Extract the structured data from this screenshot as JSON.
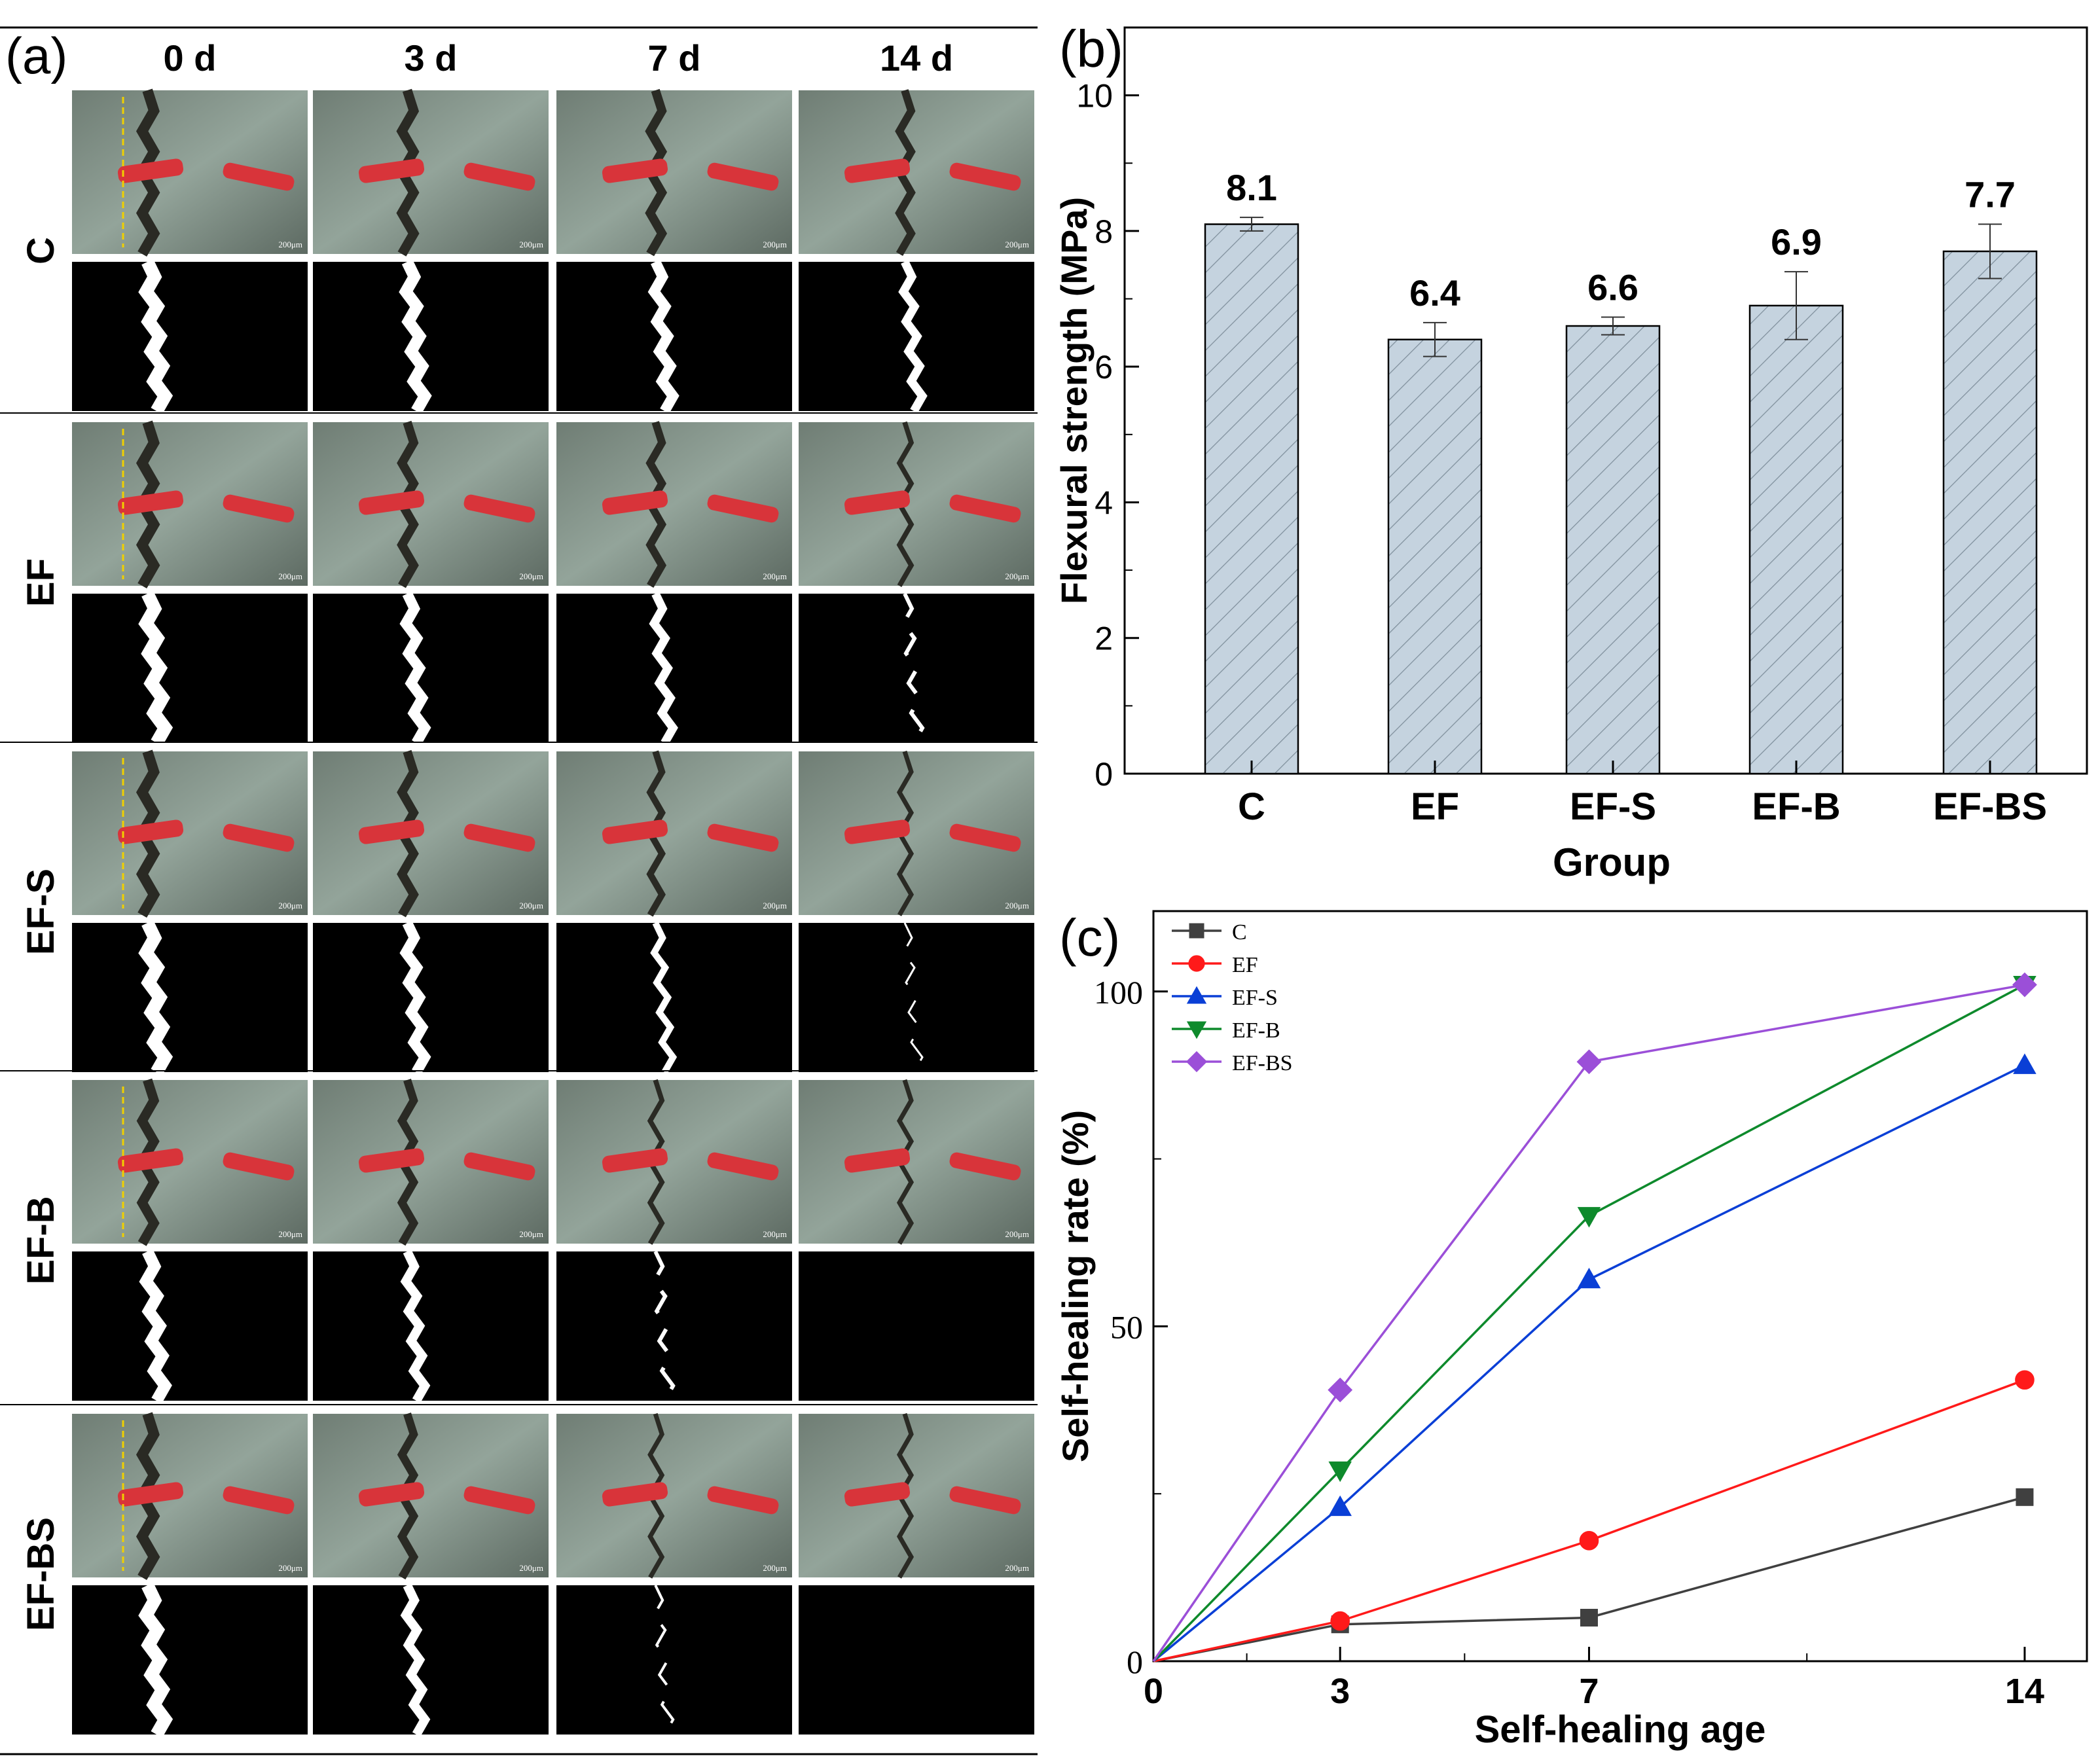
{
  "panel_a": {
    "label": "(a)",
    "columns": [
      "0 d",
      "3 d",
      "7 d",
      "14 d"
    ],
    "rows": [
      "C",
      "EF",
      "EF-S",
      "EF-B",
      "EF-BS"
    ],
    "micrograph_scale_text": "200μm"
  },
  "chart_data": [
    {
      "panel": "(b)",
      "type": "bar",
      "title": "",
      "xlabel": "Group",
      "ylabel": "Flexural strength (MPa)",
      "categories": [
        "C",
        "EF",
        "EF-S",
        "EF-B",
        "EF-BS"
      ],
      "values": [
        8.1,
        6.4,
        6.6,
        6.9,
        7.7
      ],
      "data_labels": [
        "8.1",
        "6.4",
        "6.6",
        "6.9",
        "7.7"
      ],
      "error": [
        0.1,
        0.25,
        0.13,
        0.5,
        0.4
      ],
      "ylim": [
        0,
        11
      ],
      "yticks": [
        0,
        2,
        4,
        6,
        8,
        10
      ],
      "bar_color": "#c5d3df",
      "hatch": "diagonal"
    },
    {
      "panel": "(c)",
      "type": "line",
      "title": "",
      "xlabel": "Self-healing age",
      "ylabel": "Self-healing rate (%)",
      "x": [
        0,
        3,
        7,
        14
      ],
      "xticks": [
        0,
        3,
        7,
        14
      ],
      "xlim": [
        0,
        15
      ],
      "yticks": [
        0,
        50,
        100
      ],
      "ylim": [
        0,
        112
      ],
      "legend_position": "top-left",
      "series": [
        {
          "name": "C",
          "values": [
            0,
            5.5,
            6.5,
            24.5
          ],
          "color": "#404040",
          "marker": "square"
        },
        {
          "name": "EF",
          "values": [
            0,
            6,
            18,
            42
          ],
          "color": "#ff1a1a",
          "marker": "circle"
        },
        {
          "name": "EF-S",
          "values": [
            0,
            23,
            57,
            89
          ],
          "color": "#0a3fd6",
          "marker": "triangle-up"
        },
        {
          "name": "EF-B",
          "values": [
            0,
            28.5,
            66.5,
            101
          ],
          "color": "#0e8a2c",
          "marker": "triangle-down"
        },
        {
          "name": "EF-BS",
          "values": [
            0,
            40.5,
            89.5,
            101
          ],
          "color": "#9b4fd8",
          "marker": "diamond"
        }
      ]
    }
  ]
}
